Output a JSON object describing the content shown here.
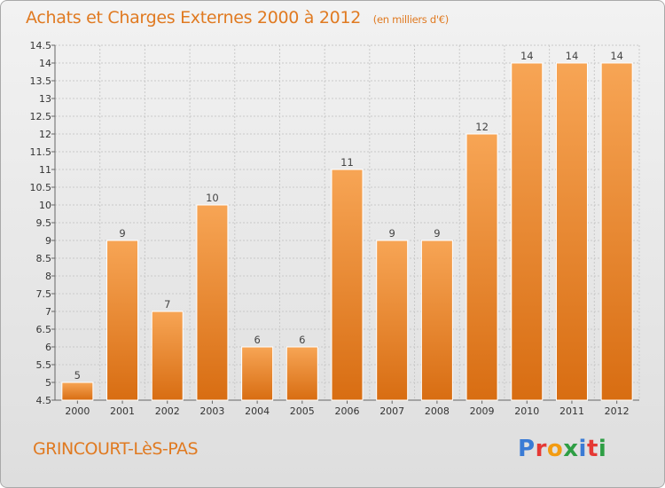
{
  "header": {
    "title": "Achats et Charges Externes 2000 à 2012",
    "subtitle": "(en milliers d'€)"
  },
  "footer": {
    "commune": "GRINCOURT-LèS-PAS",
    "logo_letters": [
      "P",
      "r",
      "o",
      "x",
      "i",
      "t",
      "i"
    ],
    "logo_colors": [
      "#3a7bd5",
      "#e53935",
      "#f39c12",
      "#2e9e44",
      "#3a7bd5",
      "#e53935",
      "#2e9e44"
    ]
  },
  "colors": {
    "bar_light": "#f7a555",
    "bar_dark": "#d86d12",
    "title": "#e07a21",
    "grid": "#c9c9c9"
  },
  "chart_data": {
    "type": "bar",
    "categories": [
      "2000",
      "2001",
      "2002",
      "2003",
      "2004",
      "2005",
      "2006",
      "2007",
      "2008",
      "2009",
      "2010",
      "2011",
      "2012"
    ],
    "values": [
      5,
      9,
      7,
      10,
      6,
      6,
      11,
      9,
      9,
      12,
      14,
      14,
      14
    ],
    "data_labels": [
      "5",
      "9",
      "7",
      "10",
      "6",
      "6",
      "11",
      "9",
      "9",
      "12",
      "14",
      "14",
      "14"
    ],
    "ylim": [
      4.5,
      14.5
    ],
    "yticks": [
      4.5,
      5,
      5.5,
      6,
      6.5,
      7,
      7.5,
      8,
      8.5,
      9,
      9.5,
      10,
      10.5,
      11,
      11.5,
      12,
      12.5,
      13,
      13.5,
      14,
      14.5
    ],
    "ytick_labels": [
      "4.5",
      "5",
      "5.5",
      "6",
      "6.5",
      "7",
      "7.5",
      "8",
      "8.5",
      "9",
      "9.5",
      "10",
      "10.5",
      "11",
      "11.5",
      "12",
      "12.5",
      "13",
      "13.5",
      "14",
      "14.5"
    ],
    "grid": true,
    "title": "Achats et Charges Externes 2000 à 2012",
    "xlabel": "",
    "ylabel": ""
  }
}
